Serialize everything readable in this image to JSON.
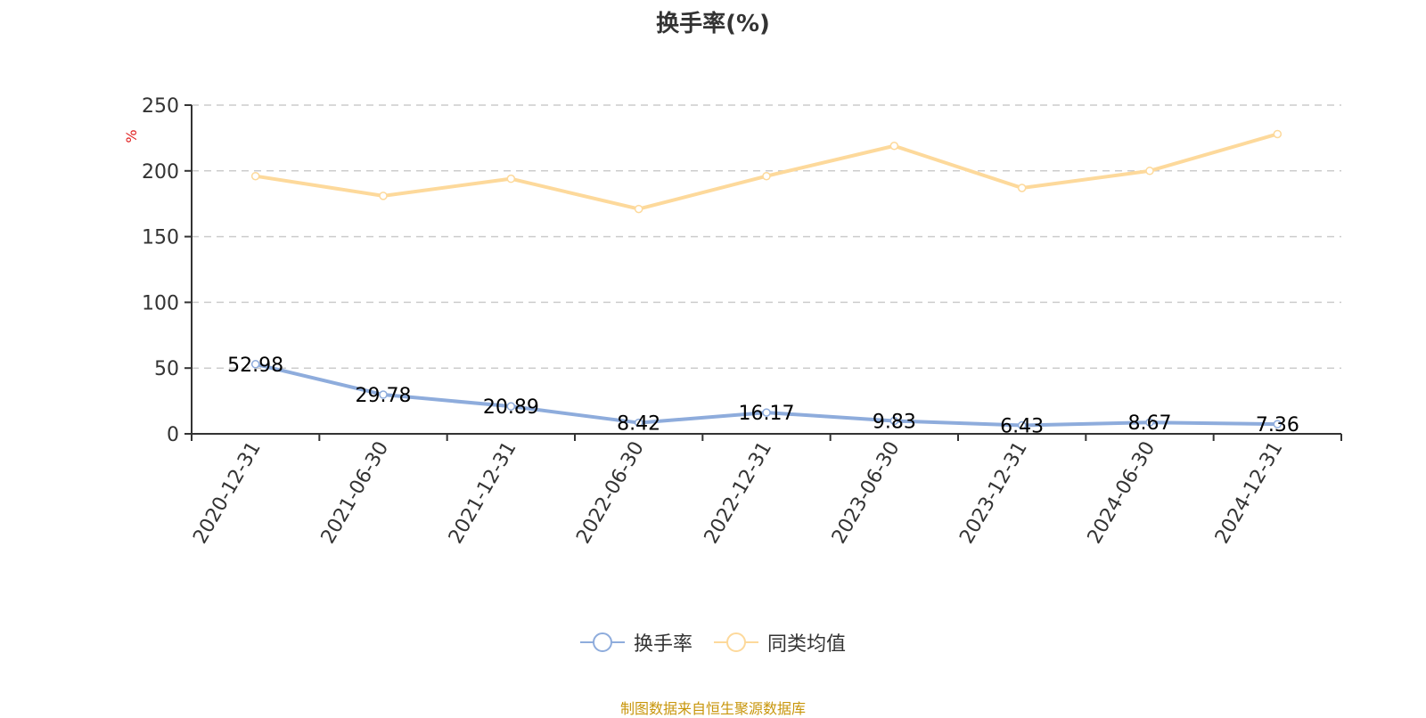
{
  "title": "换手率(%)",
  "y_axis_unit": "%",
  "source_note": "制图数据来自恒生聚源数据库",
  "legend": [
    {
      "label": "换手率",
      "color": "#8eacdc"
    },
    {
      "label": "同类均值",
      "color": "#fdd99b"
    }
  ],
  "chart_data": {
    "type": "line",
    "title": "换手率(%)",
    "xlabel": "",
    "ylabel": "%",
    "ylim": [
      0,
      250
    ],
    "yticks": [
      0,
      50,
      100,
      150,
      200,
      250
    ],
    "grid": true,
    "legend_position": "bottom",
    "categories": [
      "2020-12-31",
      "2021-06-30",
      "2021-12-31",
      "2022-06-30",
      "2022-12-31",
      "2023-06-30",
      "2023-12-31",
      "2024-06-30",
      "2024-12-31"
    ],
    "series": [
      {
        "name": "换手率",
        "color": "#8eacdc",
        "values": [
          52.98,
          29.78,
          20.89,
          8.42,
          16.17,
          9.83,
          6.43,
          8.67,
          7.36
        ],
        "labels": [
          "52.98",
          "29.78",
          "20.89",
          "8.42",
          "16.17",
          "9.83",
          "6.43",
          "8.67",
          "7.36"
        ]
      },
      {
        "name": "同类均值",
        "color": "#fdd99b",
        "values": [
          196,
          181,
          194,
          171,
          196,
          219,
          187,
          200,
          228
        ]
      }
    ]
  }
}
